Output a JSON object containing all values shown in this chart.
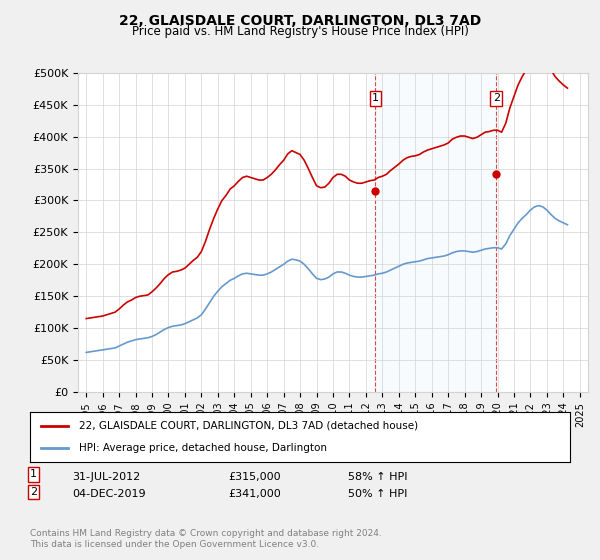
{
  "title": "22, GLAISDALE COURT, DARLINGTON, DL3 7AD",
  "subtitle": "Price paid vs. HM Land Registry's House Price Index (HPI)",
  "ylabel_ticks": [
    "£0",
    "£50K",
    "£100K",
    "£150K",
    "£200K",
    "£250K",
    "£300K",
    "£350K",
    "£400K",
    "£450K",
    "£500K"
  ],
  "ylim": [
    0,
    500000
  ],
  "yticks": [
    0,
    50000,
    100000,
    150000,
    200000,
    250000,
    300000,
    350000,
    400000,
    450000,
    500000
  ],
  "background_color": "#f0f0f0",
  "plot_background": "#ffffff",
  "red_color": "#cc0000",
  "blue_color": "#6699cc",
  "sale1_date_label": "31-JUL-2012",
  "sale1_price": 315000,
  "sale1_pct": "58% ↑ HPI",
  "sale2_date_label": "04-DEC-2019",
  "sale2_price": 341000,
  "sale2_pct": "50% ↑ HPI",
  "legend_label_red": "22, GLAISDALE COURT, DARLINGTON, DL3 7AD (detached house)",
  "legend_label_blue": "HPI: Average price, detached house, Darlington",
  "footer": "Contains HM Land Registry data © Crown copyright and database right 2024.\nThis data is licensed under the Open Government Licence v3.0.",
  "sale1_x": 2012.58,
  "sale2_x": 2019.92,
  "hpi_dates": [
    1995.0,
    1995.25,
    1995.5,
    1995.75,
    1996.0,
    1996.25,
    1996.5,
    1996.75,
    1997.0,
    1997.25,
    1997.5,
    1997.75,
    1998.0,
    1998.25,
    1998.5,
    1998.75,
    1999.0,
    1999.25,
    1999.5,
    1999.75,
    2000.0,
    2000.25,
    2000.5,
    2000.75,
    2001.0,
    2001.25,
    2001.5,
    2001.75,
    2002.0,
    2002.25,
    2002.5,
    2002.75,
    2003.0,
    2003.25,
    2003.5,
    2003.75,
    2004.0,
    2004.25,
    2004.5,
    2004.75,
    2005.0,
    2005.25,
    2005.5,
    2005.75,
    2006.0,
    2006.25,
    2006.5,
    2006.75,
    2007.0,
    2007.25,
    2007.5,
    2007.75,
    2008.0,
    2008.25,
    2008.5,
    2008.75,
    2009.0,
    2009.25,
    2009.5,
    2009.75,
    2010.0,
    2010.25,
    2010.5,
    2010.75,
    2011.0,
    2011.25,
    2011.5,
    2011.75,
    2012.0,
    2012.25,
    2012.5,
    2012.75,
    2013.0,
    2013.25,
    2013.5,
    2013.75,
    2014.0,
    2014.25,
    2014.5,
    2014.75,
    2015.0,
    2015.25,
    2015.5,
    2015.75,
    2016.0,
    2016.25,
    2016.5,
    2016.75,
    2017.0,
    2017.25,
    2017.5,
    2017.75,
    2018.0,
    2018.25,
    2018.5,
    2018.75,
    2019.0,
    2019.25,
    2019.5,
    2019.75,
    2020.0,
    2020.25,
    2020.5,
    2020.75,
    2021.0,
    2021.25,
    2021.5,
    2021.75,
    2022.0,
    2022.25,
    2022.5,
    2022.75,
    2023.0,
    2023.25,
    2023.5,
    2023.75,
    2024.0,
    2024.25
  ],
  "hpi_values": [
    62000,
    63000,
    64000,
    65000,
    66000,
    67000,
    68000,
    69000,
    72000,
    75000,
    78000,
    80000,
    82000,
    83000,
    84000,
    85000,
    87000,
    90000,
    94000,
    98000,
    101000,
    103000,
    104000,
    105000,
    107000,
    110000,
    113000,
    116000,
    121000,
    130000,
    140000,
    150000,
    158000,
    165000,
    170000,
    175000,
    178000,
    182000,
    185000,
    186000,
    185000,
    184000,
    183000,
    183000,
    185000,
    188000,
    192000,
    196000,
    200000,
    205000,
    208000,
    207000,
    205000,
    200000,
    193000,
    185000,
    178000,
    176000,
    177000,
    180000,
    185000,
    188000,
    188000,
    186000,
    183000,
    181000,
    180000,
    180000,
    181000,
    182000,
    183000,
    185000,
    186000,
    188000,
    191000,
    194000,
    197000,
    200000,
    202000,
    203000,
    204000,
    205000,
    207000,
    209000,
    210000,
    211000,
    212000,
    213000,
    215000,
    218000,
    220000,
    221000,
    221000,
    220000,
    219000,
    220000,
    222000,
    224000,
    225000,
    226000,
    226000,
    224000,
    232000,
    245000,
    255000,
    265000,
    272000,
    278000,
    285000,
    290000,
    292000,
    290000,
    285000,
    278000,
    272000,
    268000,
    265000,
    262000
  ],
  "red_dates": [
    1995.0,
    1995.25,
    1995.5,
    1995.75,
    1996.0,
    1996.25,
    1996.5,
    1996.75,
    1997.0,
    1997.25,
    1997.5,
    1997.75,
    1998.0,
    1998.25,
    1998.5,
    1998.75,
    1999.0,
    1999.25,
    1999.5,
    1999.75,
    2000.0,
    2000.25,
    2000.5,
    2000.75,
    2001.0,
    2001.25,
    2001.5,
    2001.75,
    2002.0,
    2002.25,
    2002.5,
    2002.75,
    2003.0,
    2003.25,
    2003.5,
    2003.75,
    2004.0,
    2004.25,
    2004.5,
    2004.75,
    2005.0,
    2005.25,
    2005.5,
    2005.75,
    2006.0,
    2006.25,
    2006.5,
    2006.75,
    2007.0,
    2007.25,
    2007.5,
    2007.75,
    2008.0,
    2008.25,
    2008.5,
    2008.75,
    2009.0,
    2009.25,
    2009.5,
    2009.75,
    2010.0,
    2010.25,
    2010.5,
    2010.75,
    2011.0,
    2011.25,
    2011.5,
    2011.75,
    2012.0,
    2012.25,
    2012.5,
    2012.75,
    2013.0,
    2013.25,
    2013.5,
    2013.75,
    2014.0,
    2014.25,
    2014.5,
    2014.75,
    2015.0,
    2015.25,
    2015.5,
    2015.75,
    2016.0,
    2016.25,
    2016.5,
    2016.75,
    2017.0,
    2017.25,
    2017.5,
    2017.75,
    2018.0,
    2018.25,
    2018.5,
    2018.75,
    2019.0,
    2019.25,
    2019.5,
    2019.75,
    2020.0,
    2020.25,
    2020.5,
    2020.75,
    2021.0,
    2021.25,
    2021.5,
    2021.75,
    2022.0,
    2022.25,
    2022.5,
    2022.75,
    2023.0,
    2023.25,
    2023.5,
    2023.75,
    2024.0,
    2024.25
  ],
  "red_values": [
    115000,
    116000,
    117000,
    118000,
    119000,
    121000,
    123000,
    125000,
    130000,
    136000,
    141000,
    144000,
    148000,
    150000,
    151000,
    152000,
    157000,
    163000,
    170000,
    178000,
    184000,
    188000,
    189000,
    191000,
    194000,
    200000,
    206000,
    211000,
    220000,
    236000,
    255000,
    272000,
    287000,
    300000,
    308000,
    318000,
    323000,
    330000,
    336000,
    338000,
    336000,
    334000,
    332000,
    332000,
    336000,
    341000,
    348000,
    356000,
    363000,
    373000,
    378000,
    375000,
    372000,
    363000,
    350000,
    336000,
    323000,
    320000,
    321000,
    327000,
    336000,
    341000,
    341000,
    338000,
    332000,
    329000,
    327000,
    327000,
    329000,
    331000,
    332000,
    336000,
    338000,
    341000,
    347000,
    352000,
    357000,
    363000,
    367000,
    369000,
    370000,
    372000,
    376000,
    379000,
    381000,
    383000,
    385000,
    387000,
    390000,
    396000,
    399000,
    401000,
    401000,
    399000,
    397000,
    399000,
    403000,
    407000,
    408000,
    410000,
    410000,
    407000,
    421000,
    445000,
    463000,
    481000,
    494000,
    505000,
    517000,
    527000,
    530000,
    527000,
    517000,
    505000,
    494000,
    487000,
    481000,
    476000
  ],
  "xlim": [
    1994.5,
    2025.5
  ],
  "xticks": [
    1995,
    1996,
    1997,
    1998,
    1999,
    2000,
    2001,
    2002,
    2003,
    2004,
    2005,
    2006,
    2007,
    2008,
    2009,
    2010,
    2011,
    2012,
    2013,
    2014,
    2015,
    2016,
    2017,
    2018,
    2019,
    2020,
    2021,
    2022,
    2023,
    2024,
    2025
  ]
}
